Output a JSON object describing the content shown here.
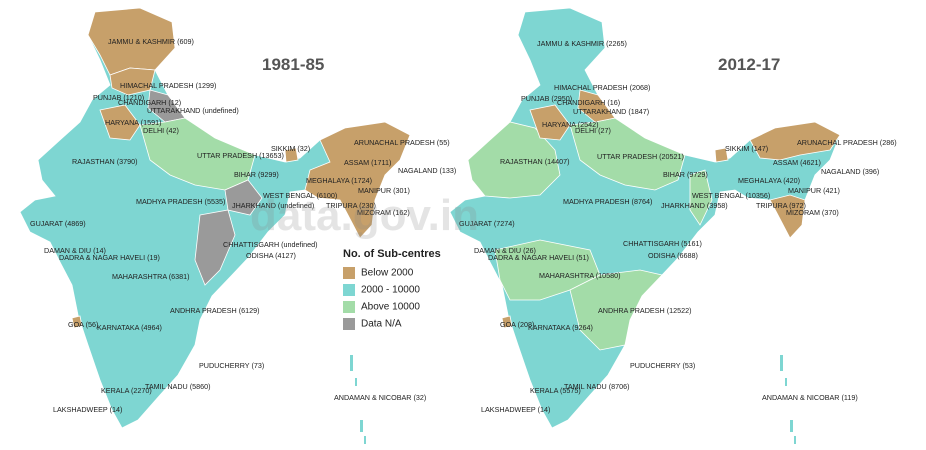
{
  "watermark": "data.gov.in",
  "legend": {
    "title": "No. of Sub-centres",
    "items": [
      {
        "label": "Below 2000",
        "color": "#c7a06a"
      },
      {
        "label": "2000 - 10000",
        "color": "#7ed6d2"
      },
      {
        "label": "Above 10000",
        "color": "#a3dca8"
      },
      {
        "label": "Data N/A",
        "color": "#9a9a9a"
      }
    ]
  },
  "maps": [
    {
      "period": "1981-85",
      "labels": [
        "JAMMU & KASHMIR (609)",
        "HIMACHAL PRADESH (1299)",
        "PUNJAB (1210)",
        "CHANDIGARH (12)",
        "UTTARAKHAND (undefined)",
        "HARYANA (1591)",
        "DELHI (42)",
        "RAJASTHAN (3790)",
        "UTTAR PRADESH (13653)",
        "SIKKIM (32)",
        "ARUNACHAL PRADESH (55)",
        "ASSAM (1711)",
        "BIHAR (9299)",
        "NAGALAND (133)",
        "MEGHALAYA (1724)",
        "MANIPUR (301)",
        "MADHYA PRADESH (5535)",
        "WEST BENGAL (6100)",
        "JHARKHAND (undefined)",
        "TRIPURA (230)",
        "GUJARAT (4869)",
        "MIZORAM (162)",
        "CHHATTISGARH (undefined)",
        "DAMAN & DIU (14)",
        "DADRA & NAGAR HAVELI (19)",
        "ODISHA (4127)",
        "MAHARASHTRA (6381)",
        "ANDHRA PRADESH (6129)",
        "GOA (56)",
        "KARNATAKA (4964)",
        "PUDUCHERRY (73)",
        "TAMIL NADU (5860)",
        "KERALA (2270)",
        "LAKSHADWEEP (14)",
        "ANDAMAN & NICOBAR (32)"
      ]
    },
    {
      "period": "2012-17",
      "labels": [
        "JAMMU & KASHMIR (2265)",
        "HIMACHAL PRADESH (2068)",
        "PUNJAB (2950)",
        "CHANDIGARH (16)",
        "UTTARAKHAND (1847)",
        "HARYANA (2542)",
        "DELHI (27)",
        "RAJASTHAN (14407)",
        "UTTAR PRADESH (20521)",
        "SIKKIM (147)",
        "ARUNACHAL PRADESH (286)",
        "ASSAM (4621)",
        "BIHAR (9729)",
        "NAGALAND (396)",
        "MEGHALAYA (420)",
        "MANIPUR (421)",
        "MADHYA PRADESH (8764)",
        "WEST BENGAL (10356)",
        "JHARKHAND (3958)",
        "TRIPURA (972)",
        "GUJARAT (7274)",
        "MIZORAM (370)",
        "CHHATTISGARH (5161)",
        "DAMAN & DIU (26)",
        "DADRA & NAGAR HAVELI (51)",
        "ODISHA (6688)",
        "MAHARASHTRA (10580)",
        "ANDHRA PRADESH (12522)",
        "GOA (208)",
        "KARNATAKA (9264)",
        "PUDUCHERRY (53)",
        "TAMIL NADU (8706)",
        "KERALA (5575)",
        "LAKSHADWEEP (14)",
        "ANDAMAN & NICOBAR (119)"
      ]
    }
  ]
}
